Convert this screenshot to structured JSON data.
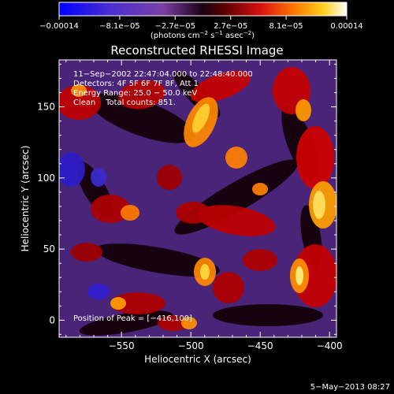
{
  "chart_data": {
    "type": "heatmap",
    "title": "Reconstructed RHESSI Image",
    "xlabel": "Heliocentric X (arcsec)",
    "ylabel": "Heliocentric Y (arcsec)",
    "xlim": [
      -595,
      -395
    ],
    "ylim": [
      -12,
      183
    ],
    "x_ticks": [
      -550,
      -500,
      -450,
      -400
    ],
    "y_ticks": [
      0,
      50,
      100,
      150
    ],
    "x_tick_labels": [
      "−550",
      "−500",
      "−450",
      "−400"
    ],
    "y_tick_labels": [
      "0",
      "50",
      "100",
      "150"
    ],
    "colorbar": {
      "range": [
        -0.00014,
        0.00014
      ],
      "ticks": [
        -0.00014,
        -8.1e-05,
        -2.7e-05,
        2.7e-05,
        8.1e-05,
        0.00014
      ],
      "tick_labels": [
        "−0.00014",
        "−8.1e−05",
        "−2.7e−05",
        "2.7e−05",
        "8.1e−05",
        "0.00014"
      ],
      "units_prefix": "(photons cm",
      "units_exp1": "−2",
      "units_mid": " s",
      "units_exp2": "−1",
      "units_mid2": " asec",
      "units_exp3": "−2",
      "units_suffix": ")"
    },
    "annotations": [
      "11−Sep−2002 22:47:04.000 to 22:48:40.000",
      "Detectors: 4F 5F 6F 7F 8F, Att 1",
      "Energy Range: 25.0 − 50.0 keV",
      "Clean    Total counts: 851."
    ],
    "peak_label": "Position of Peak = [−416,100]",
    "footer_date": "5−May−2013 08:27",
    "peak_position": [
      -416,
      100
    ],
    "total_counts": 851
  }
}
